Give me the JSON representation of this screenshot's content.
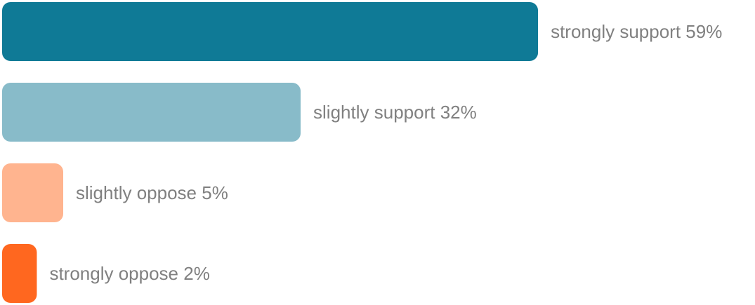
{
  "chart_data": {
    "type": "hbar",
    "categories": [
      "strongly support",
      "slightly support",
      "slightly oppose",
      "strongly oppose"
    ],
    "values": [
      59,
      32,
      5,
      2
    ],
    "value_labels": [
      "59%",
      "32%",
      "5%",
      "2%"
    ],
    "colors": [
      "#0f7a96",
      "#88bbc9",
      "#ffb48f",
      "#ff671f"
    ]
  }
}
